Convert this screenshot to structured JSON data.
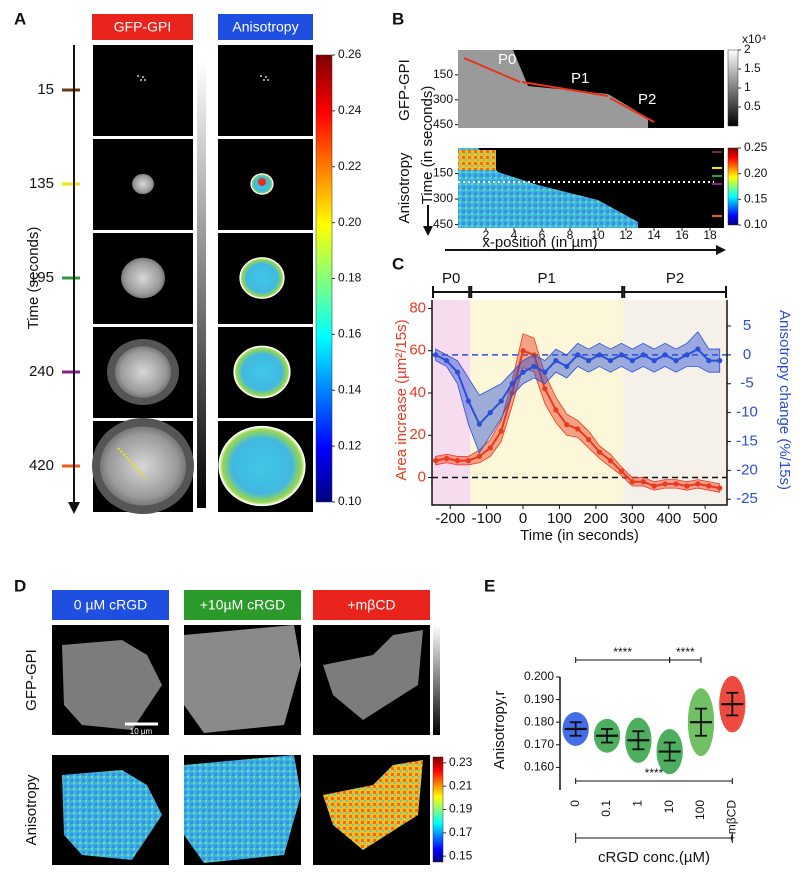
{
  "panel_labels": [
    "A",
    "B",
    "C",
    "D",
    "E"
  ],
  "panel_a": {
    "headers": [
      "GFP-GPI",
      "Anisotropy"
    ],
    "axis_label": "Time (seconds)",
    "times": [
      "15",
      "135",
      "195",
      "240",
      "420"
    ],
    "time_colors": [
      "#6b3a10",
      "#f2e600",
      "#2e9e3a",
      "#8a1f8a",
      "#f05a1a"
    ],
    "colorbar": {
      "lim": [
        0.1,
        0.26
      ],
      "ticks": [
        0.26,
        0.24,
        0.22,
        {
          "value": 0.2,
          "label": "0.20"
        },
        0.18,
        0.16,
        0.14,
        0.12,
        {
          "value": 0.1,
          "label": "0.10"
        }
      ]
    }
  },
  "panel_b": {
    "row_labels": [
      "GFP-GPI",
      "Anisotropy"
    ],
    "y_label": "Time (in seconds)",
    "x_label": "x-position (in µm)",
    "phases": [
      "P0",
      "P1",
      "P2"
    ],
    "ylim": [
      0,
      470
    ],
    "yticks": [
      150,
      300,
      450
    ],
    "xlim": [
      0,
      19
    ],
    "xticks": [
      2,
      4,
      6,
      8,
      10,
      12,
      14,
      16,
      18
    ],
    "gray_colorbar": {
      "unit": "x10⁴",
      "lim": [
        0,
        2
      ],
      "ticks": [
        2,
        1.5,
        1,
        0.5
      ]
    },
    "anisotropy_colorbar": {
      "lim": [
        0.1,
        0.25
      ],
      "ticks": [
        0.25,
        {
          "value": 0.2,
          "label": "0.20"
        },
        0.15,
        {
          "value": 0.1,
          "label": "0.10"
        }
      ]
    }
  },
  "panel_d": {
    "headers": [
      "0 µM cRGD",
      "+10µM cRGD",
      "+mβCD"
    ],
    "header_colors": [
      "#1f4fe0",
      "#2a9a2a",
      "#e8241c"
    ],
    "row_labels": [
      "GFP-GPI",
      "Anisotropy"
    ],
    "scale_bar": "10 µm",
    "colorbar": {
      "lim": [
        0.145,
        0.235
      ],
      "ticks": [
        0.23,
        0.21,
        0.19,
        0.17,
        0.15
      ]
    }
  },
  "chart_data": [
    {
      "type": "line",
      "x_label": "Time (in seconds)",
      "y_label": "Area increase (µm²/15s)",
      "y2_label": "Anisotropy change (%/15s)",
      "xlim": [
        -250,
        560
      ],
      "xticks": [
        -200,
        -100,
        0,
        100,
        200,
        300,
        400,
        500
      ],
      "ylim": [
        -13,
        84
      ],
      "yticks": [
        0,
        20,
        40,
        60,
        80
      ],
      "y2lim": [
        -26,
        9.5
      ],
      "y2ticks": [
        5,
        0,
        -5,
        -10,
        -15,
        -20,
        -25
      ],
      "regions": [
        {
          "label": "P0",
          "start": -250,
          "end": -145,
          "color": "#f7dcf0"
        },
        {
          "label": "P1",
          "start": -145,
          "end": 275,
          "color": "#fbf7d8"
        },
        {
          "label": "P2",
          "start": 275,
          "end": 560,
          "color": "#f6f0ea"
        }
      ],
      "x": [
        -240,
        -210,
        -180,
        -150,
        -120,
        -90,
        -60,
        -30,
        0,
        30,
        60,
        90,
        120,
        150,
        180,
        210,
        240,
        270,
        300,
        330,
        360,
        390,
        420,
        450,
        480,
        510,
        540
      ],
      "series": [
        {
          "name": "Area increase",
          "color": "#ea3a1e",
          "values": [
            8,
            9,
            8,
            8,
            10,
            14,
            22,
            40,
            60,
            58,
            42,
            32,
            25,
            23,
            18,
            12,
            8,
            3,
            -2,
            -2,
            -4,
            -3,
            -3,
            -4,
            -3,
            -4,
            -5
          ],
          "errors": [
            2,
            2,
            2,
            2,
            3,
            4,
            5,
            6,
            8,
            8,
            7,
            6,
            5,
            4,
            4,
            3,
            3,
            2,
            2,
            2,
            2,
            2,
            2,
            2,
            2,
            2,
            2
          ]
        },
        {
          "name": "Anisotropy change",
          "color": "#2a4fd6",
          "axis": "y2",
          "values": [
            0,
            -1,
            -3,
            -8,
            -12,
            -10,
            -8,
            -5,
            -3,
            -2,
            -3,
            -1,
            -2,
            0,
            -1,
            0,
            -1,
            0,
            -1,
            0,
            -1,
            0,
            -1,
            0,
            1,
            -1,
            -1
          ],
          "errors": [
            1,
            1,
            2,
            4,
            5,
            4,
            3,
            2,
            2,
            2,
            2,
            2,
            2,
            2,
            2,
            2,
            2,
            2,
            2,
            2,
            2,
            2,
            2,
            2,
            3,
            2,
            2
          ]
        }
      ]
    },
    {
      "type": "strip",
      "y_label": "Anisotropy,r",
      "x_label": "cRGD conc.(µM)",
      "categories": [
        "0",
        "0.1",
        "1",
        "10",
        "100",
        "+mβCD"
      ],
      "values": [
        0.177,
        0.174,
        0.172,
        0.167,
        0.18,
        0.188
      ],
      "errors": [
        0.003,
        0.003,
        0.004,
        0.004,
        0.006,
        0.005
      ],
      "colors": [
        "#2454e6",
        "#2ea043",
        "#2ea043",
        "#2ea043",
        "#58b548",
        "#ea2b1f"
      ],
      "ylim": [
        0.15,
        0.2
      ],
      "yticks": [
        {
          "value": 0.2,
          "label": "0.200"
        },
        {
          "value": 0.19,
          "label": "0.190"
        },
        {
          "value": 0.18,
          "label": "0.180"
        },
        {
          "value": 0.17,
          "label": "0.170"
        },
        {
          "value": 0.16,
          "label": "0.160"
        }
      ],
      "significance": [
        "****",
        "****",
        "****"
      ]
    }
  ]
}
